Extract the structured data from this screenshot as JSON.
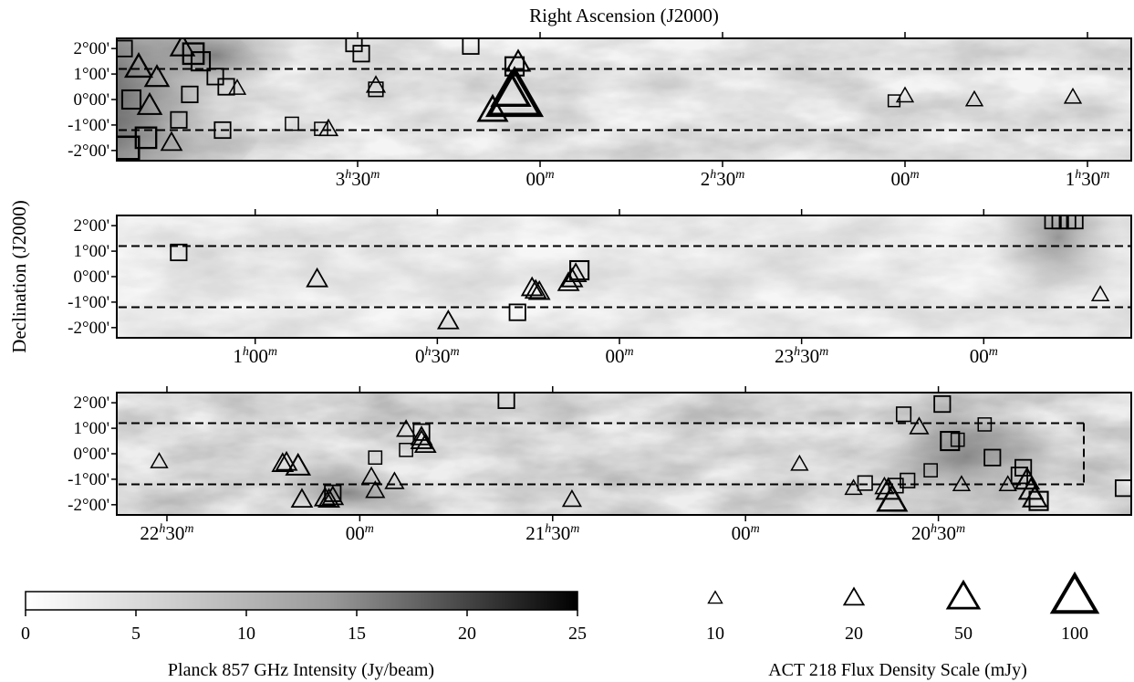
{
  "figure": {
    "title_top": "Right Ascension (J2000)",
    "ylabel": "Declination (J2000)",
    "dec_ticks": [
      "2°00'",
      "1°00'",
      "0°00'",
      "-1°00'",
      "-2°00'"
    ],
    "dec_values": [
      2,
      1,
      0,
      -1,
      -2
    ]
  },
  "chart_data": {
    "type": "scatter",
    "ylim": [
      -2.4,
      2.4
    ],
    "stripe_dec": [
      -1.2,
      1.2
    ],
    "panels": [
      {
        "ra_ticks": [
          {
            "h": "3",
            "m": "30",
            "ra_h": 3.5
          },
          {
            "h": "",
            "m": "00",
            "ra_h": 3.0
          },
          {
            "h": "2",
            "m": "30",
            "ra_h": 2.5
          },
          {
            "h": "",
            "m": "00",
            "ra_h": 2.0
          },
          {
            "h": "1",
            "m": "30",
            "ra_h": 1.5
          }
        ],
        "ra_range_h": [
          4.16,
          1.38
        ],
        "points": [
          {
            "ra": 3.07,
            "dec": 0.0,
            "f": 100,
            "shape": "triangle"
          },
          {
            "ra": 3.08,
            "dec": 0.2,
            "f": 50,
            "shape": "triangle"
          },
          {
            "ra": 3.13,
            "dec": -0.5,
            "f": 30,
            "shape": "triangle"
          },
          {
            "ra": 3.06,
            "dec": 1.4,
            "f": 20,
            "shape": "triangle"
          },
          {
            "ra": 3.07,
            "dec": 1.3,
            "f": 20,
            "shape": "square"
          },
          {
            "ra": 3.19,
            "dec": 2.1,
            "f": 15,
            "shape": "square"
          },
          {
            "ra": 3.49,
            "dec": 1.8,
            "f": 15,
            "shape": "square"
          },
          {
            "ra": 3.51,
            "dec": 2.2,
            "f": 15,
            "shape": "square"
          },
          {
            "ra": 3.45,
            "dec": 0.5,
            "f": 12,
            "shape": "triangle"
          },
          {
            "ra": 3.45,
            "dec": 0.4,
            "f": 12,
            "shape": "square"
          },
          {
            "ra": 3.58,
            "dec": -1.2,
            "f": 12,
            "shape": "triangle"
          },
          {
            "ra": 3.6,
            "dec": -1.15,
            "f": 10,
            "shape": "square"
          },
          {
            "ra": 3.68,
            "dec": -0.95,
            "f": 10,
            "shape": "square"
          },
          {
            "ra": 2.0,
            "dec": 0.1,
            "f": 10,
            "shape": "triangle"
          },
          {
            "ra": 2.03,
            "dec": -0.05,
            "f": 8,
            "shape": "square"
          },
          {
            "ra": 1.81,
            "dec": -0.05,
            "f": 10,
            "shape": "triangle"
          },
          {
            "ra": 1.54,
            "dec": 0.05,
            "f": 10,
            "shape": "triangle"
          },
          {
            "ra": 3.83,
            "dec": 0.4,
            "f": 10,
            "shape": "triangle"
          },
          {
            "ra": 3.86,
            "dec": 0.5,
            "f": 15,
            "shape": "square"
          },
          {
            "ra": 3.89,
            "dec": 0.9,
            "f": 15,
            "shape": "square"
          },
          {
            "ra": 3.87,
            "dec": -1.2,
            "f": 15,
            "shape": "square"
          },
          {
            "ra": 3.93,
            "dec": 1.5,
            "f": 20,
            "shape": "square"
          },
          {
            "ra": 3.95,
            "dec": 1.8,
            "f": 25,
            "shape": "square"
          },
          {
            "ra": 3.98,
            "dec": 2.0,
            "f": 20,
            "shape": "triangle"
          },
          {
            "ra": 3.96,
            "dec": 0.2,
            "f": 15,
            "shape": "square"
          },
          {
            "ra": 3.99,
            "dec": -0.8,
            "f": 15,
            "shape": "square"
          },
          {
            "ra": 4.01,
            "dec": -1.75,
            "f": 15,
            "shape": "triangle"
          },
          {
            "ra": 4.05,
            "dec": 0.8,
            "f": 20,
            "shape": "triangle"
          },
          {
            "ra": 4.07,
            "dec": -0.3,
            "f": 20,
            "shape": "triangle"
          },
          {
            "ra": 4.08,
            "dec": -1.5,
            "f": 25,
            "shape": "square"
          },
          {
            "ra": 4.1,
            "dec": 1.2,
            "f": 25,
            "shape": "triangle"
          },
          {
            "ra": 4.12,
            "dec": 0.0,
            "f": 20,
            "shape": "square"
          },
          {
            "ra": 4.13,
            "dec": -1.9,
            "f": 30,
            "shape": "square"
          },
          {
            "ra": 4.14,
            "dec": 2.0,
            "f": 15,
            "shape": "square"
          }
        ]
      },
      {
        "ra_ticks": [
          {
            "h": "1",
            "m": "00",
            "ra_h": 1.0
          },
          {
            "h": "0",
            "m": "30",
            "ra_h": 0.5
          },
          {
            "h": "",
            "m": "00",
            "ra_h": 0.0
          },
          {
            "h": "23",
            "m": "30",
            "ra_h": -0.5
          },
          {
            "h": "",
            "m": "00",
            "ra_h": -1.0
          }
        ],
        "ra_range_h": [
          1.38,
          -1.405
        ],
        "points": [
          {
            "ra": 1.21,
            "dec": 0.95,
            "f": 15,
            "shape": "square"
          },
          {
            "ra": 0.83,
            "dec": -0.15,
            "f": 15,
            "shape": "triangle"
          },
          {
            "ra": 0.47,
            "dec": -1.8,
            "f": 15,
            "shape": "triangle"
          },
          {
            "ra": 0.28,
            "dec": -1.4,
            "f": 15,
            "shape": "square"
          },
          {
            "ra": 0.24,
            "dec": -0.5,
            "f": 15,
            "shape": "triangle"
          },
          {
            "ra": 0.23,
            "dec": -0.6,
            "f": 15,
            "shape": "triangle"
          },
          {
            "ra": 0.22,
            "dec": -0.65,
            "f": 15,
            "shape": "triangle"
          },
          {
            "ra": 0.14,
            "dec": -0.3,
            "f": 15,
            "shape": "triangle"
          },
          {
            "ra": 0.13,
            "dec": -0.15,
            "f": 15,
            "shape": "triangle"
          },
          {
            "ra": 0.12,
            "dec": 0.05,
            "f": 15,
            "shape": "triangle"
          },
          {
            "ra": 0.11,
            "dec": 0.25,
            "f": 20,
            "shape": "square"
          },
          {
            "ra": -1.19,
            "dec": 2.2,
            "f": 15,
            "shape": "square"
          },
          {
            "ra": -1.21,
            "dec": 2.2,
            "f": 15,
            "shape": "square"
          },
          {
            "ra": -1.23,
            "dec": 2.2,
            "f": 15,
            "shape": "square"
          },
          {
            "ra": -1.25,
            "dec": 2.2,
            "f": 15,
            "shape": "square"
          },
          {
            "ra": -1.32,
            "dec": -0.75,
            "f": 10,
            "shape": "triangle"
          }
        ]
      },
      {
        "ra_ticks": [
          {
            "h": "22",
            "m": "30",
            "ra_h": 22.5
          },
          {
            "h": "",
            "m": "00",
            "ra_h": 22.0
          },
          {
            "h": "21",
            "m": "30",
            "ra_h": 21.5
          },
          {
            "h": "",
            "m": "00",
            "ra_h": 21.0
          },
          {
            "h": "20",
            "m": "30",
            "ra_h": 20.5
          }
        ],
        "ra_range_h": [
          22.63,
          20.0
        ],
        "points": [
          {
            "ra": 22.52,
            "dec": -0.35,
            "f": 10,
            "shape": "triangle"
          },
          {
            "ra": 22.2,
            "dec": -0.45,
            "f": 15,
            "shape": "triangle"
          },
          {
            "ra": 22.19,
            "dec": -0.4,
            "f": 15,
            "shape": "triangle"
          },
          {
            "ra": 22.16,
            "dec": -0.55,
            "f": 20,
            "shape": "triangle"
          },
          {
            "ra": 22.15,
            "dec": -1.85,
            "f": 15,
            "shape": "triangle"
          },
          {
            "ra": 22.09,
            "dec": -1.8,
            "f": 15,
            "shape": "triangle"
          },
          {
            "ra": 22.08,
            "dec": -1.85,
            "f": 15,
            "shape": "triangle"
          },
          {
            "ra": 22.07,
            "dec": -1.75,
            "f": 15,
            "shape": "triangle"
          },
          {
            "ra": 22.07,
            "dec": -1.55,
            "f": 15,
            "shape": "square"
          },
          {
            "ra": 21.96,
            "dec": -0.15,
            "f": 10,
            "shape": "square"
          },
          {
            "ra": 21.97,
            "dec": -0.95,
            "f": 12,
            "shape": "triangle"
          },
          {
            "ra": 21.96,
            "dec": -1.5,
            "f": 12,
            "shape": "triangle"
          },
          {
            "ra": 21.91,
            "dec": -1.15,
            "f": 12,
            "shape": "triangle"
          },
          {
            "ra": 21.88,
            "dec": 0.9,
            "f": 12,
            "shape": "triangle"
          },
          {
            "ra": 21.88,
            "dec": 0.15,
            "f": 10,
            "shape": "square"
          },
          {
            "ra": 21.84,
            "dec": 0.85,
            "f": 15,
            "shape": "square"
          },
          {
            "ra": 21.84,
            "dec": 0.6,
            "f": 15,
            "shape": "triangle"
          },
          {
            "ra": 21.84,
            "dec": 0.45,
            "f": 15,
            "shape": "triangle"
          },
          {
            "ra": 21.83,
            "dec": 0.3,
            "f": 15,
            "shape": "triangle"
          },
          {
            "ra": 21.62,
            "dec": 2.1,
            "f": 15,
            "shape": "square"
          },
          {
            "ra": 21.45,
            "dec": -1.85,
            "f": 12,
            "shape": "triangle"
          },
          {
            "ra": 20.86,
            "dec": -0.45,
            "f": 10,
            "shape": "triangle"
          },
          {
            "ra": 20.72,
            "dec": -1.4,
            "f": 10,
            "shape": "triangle"
          },
          {
            "ra": 20.69,
            "dec": -1.15,
            "f": 12,
            "shape": "square"
          },
          {
            "ra": 20.64,
            "dec": -1.35,
            "f": 12,
            "shape": "triangle"
          },
          {
            "ra": 20.63,
            "dec": -1.5,
            "f": 20,
            "shape": "triangle"
          },
          {
            "ra": 20.62,
            "dec": -1.9,
            "f": 30,
            "shape": "triangle"
          },
          {
            "ra": 20.61,
            "dec": -1.25,
            "f": 12,
            "shape": "square"
          },
          {
            "ra": 20.59,
            "dec": 1.55,
            "f": 12,
            "shape": "square"
          },
          {
            "ra": 20.58,
            "dec": -1.05,
            "f": 12,
            "shape": "square"
          },
          {
            "ra": 20.55,
            "dec": 1.0,
            "f": 12,
            "shape": "triangle"
          },
          {
            "ra": 20.52,
            "dec": -0.65,
            "f": 10,
            "shape": "square"
          },
          {
            "ra": 20.49,
            "dec": 1.95,
            "f": 15,
            "shape": "square"
          },
          {
            "ra": 20.47,
            "dec": 0.5,
            "f": 20,
            "shape": "square"
          },
          {
            "ra": 20.45,
            "dec": 0.55,
            "f": 10,
            "shape": "square"
          },
          {
            "ra": 20.44,
            "dec": -1.25,
            "f": 10,
            "shape": "triangle"
          },
          {
            "ra": 20.38,
            "dec": 1.15,
            "f": 10,
            "shape": "square"
          },
          {
            "ra": 20.36,
            "dec": -0.15,
            "f": 15,
            "shape": "square"
          },
          {
            "ra": 20.32,
            "dec": -1.25,
            "f": 10,
            "shape": "triangle"
          },
          {
            "ra": 20.29,
            "dec": -0.85,
            "f": 15,
            "shape": "square"
          },
          {
            "ra": 20.28,
            "dec": -0.55,
            "f": 15,
            "shape": "square"
          },
          {
            "ra": 20.27,
            "dec": -1.1,
            "f": 20,
            "shape": "triangle"
          },
          {
            "ra": 20.26,
            "dec": -1.5,
            "f": 20,
            "shape": "triangle"
          },
          {
            "ra": 20.25,
            "dec": -1.8,
            "f": 20,
            "shape": "triangle"
          },
          {
            "ra": 20.24,
            "dec": -1.85,
            "f": 20,
            "shape": "square"
          },
          {
            "ra": 20.02,
            "dec": -1.35,
            "f": 15,
            "shape": "square"
          }
        ]
      }
    ],
    "colorbar": {
      "label": "Planck 857 GHz Intensity (Jy/beam)",
      "ticks": [
        "0",
        "5",
        "10",
        "15",
        "20",
        "25"
      ],
      "range": [
        0,
        25
      ],
      "cmap": [
        "#ffffff",
        "#000000"
      ]
    },
    "size_scale": {
      "label": "ACT 218 Flux Density Scale (mJy)",
      "values": [
        10,
        20,
        50,
        100
      ],
      "tick_labels": [
        "10",
        "20",
        "50",
        "100"
      ]
    }
  }
}
